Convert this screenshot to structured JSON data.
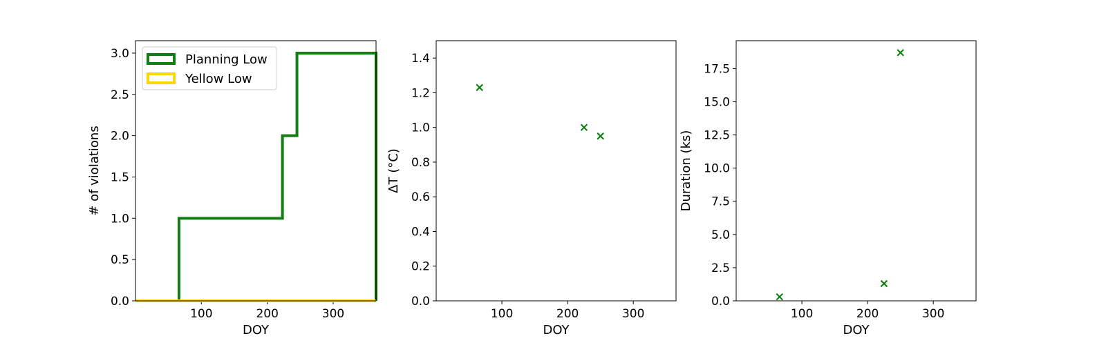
{
  "chart_data": [
    {
      "type": "line",
      "step": true,
      "xlabel": "DOY",
      "ylabel": "# of violations",
      "xlim": [
        0,
        365
      ],
      "ylim": [
        0,
        3.15
      ],
      "xticks": [
        100,
        200,
        300
      ],
      "xtick_labels": [
        "100",
        "200",
        "300"
      ],
      "yticks": [
        0,
        0.5,
        1.0,
        1.5,
        2.0,
        2.5,
        3.0
      ],
      "ytick_labels": [
        "0.0",
        "0.5",
        "1.0",
        "1.5",
        "2.0",
        "2.5",
        "3.0"
      ],
      "grid": false,
      "legend_position": "top-left",
      "series": [
        {
          "name": "Planning Low",
          "color": "#137d13",
          "x": [
            0,
            66,
            223,
            245,
            365
          ],
          "y": [
            0,
            1,
            2,
            3,
            0
          ]
        },
        {
          "name": "Yellow Low",
          "color": "#ffd700",
          "x": [
            0,
            365
          ],
          "y": [
            0,
            0
          ]
        }
      ]
    },
    {
      "type": "scatter",
      "xlabel": "DOY",
      "ylabel": "ΔT (°C)",
      "xlim": [
        0,
        365
      ],
      "ylim": [
        0,
        1.5
      ],
      "xticks": [
        100,
        200,
        300
      ],
      "xtick_labels": [
        "100",
        "200",
        "300"
      ],
      "yticks": [
        0,
        0.2,
        0.4,
        0.6,
        0.8,
        1.0,
        1.2,
        1.4
      ],
      "ytick_labels": [
        "0.0",
        "0.2",
        "0.4",
        "0.6",
        "0.8",
        "1.0",
        "1.2",
        "1.4"
      ],
      "grid": false,
      "marker": "x",
      "series": [
        {
          "color": "#008000",
          "x": [
            66,
            225,
            250
          ],
          "y": [
            1.23,
            1.0,
            0.95
          ]
        }
      ]
    },
    {
      "type": "scatter",
      "xlabel": "DOY",
      "ylabel": "Duration (ks)",
      "xlim": [
        0,
        365
      ],
      "ylim": [
        0,
        19.6
      ],
      "xticks": [
        100,
        200,
        300
      ],
      "xtick_labels": [
        "100",
        "200",
        "300"
      ],
      "yticks": [
        0,
        2.5,
        5.0,
        7.5,
        10.0,
        12.5,
        15.0,
        17.5
      ],
      "ytick_labels": [
        "0.0",
        "2.5",
        "5.0",
        "7.5",
        "10.0",
        "12.5",
        "15.0",
        "17.5"
      ],
      "grid": false,
      "marker": "x",
      "series": [
        {
          "color": "#008000",
          "x": [
            66,
            225,
            250
          ],
          "y": [
            0.3,
            1.3,
            18.7
          ]
        }
      ]
    }
  ]
}
